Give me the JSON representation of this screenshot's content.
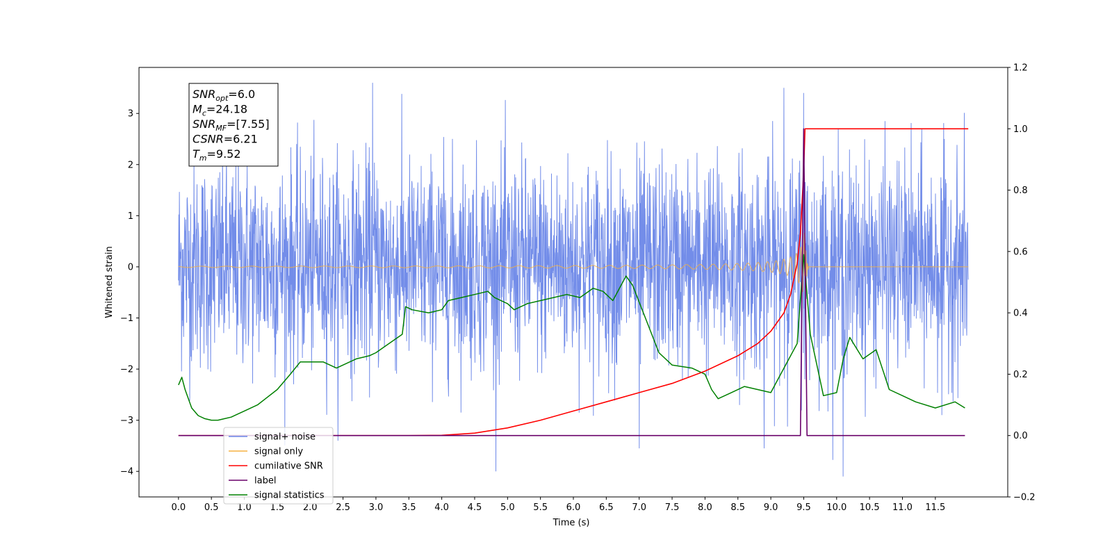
{
  "chart_data": {
    "type": "line",
    "xlabel": "Time (s)",
    "ylabel": "Whitened strain",
    "xlim": [
      -0.6,
      12.6
    ],
    "ylim": [
      -4.5,
      3.9
    ],
    "y2lim": [
      -0.2,
      1.2
    ],
    "x_ticks": [
      0.0,
      0.5,
      1.0,
      1.5,
      2.0,
      2.5,
      3.0,
      3.5,
      4.0,
      4.5,
      5.0,
      5.5,
      6.0,
      6.5,
      7.0,
      7.5,
      8.0,
      8.5,
      9.0,
      9.5,
      10.0,
      10.5,
      11.0,
      11.5
    ],
    "x_tick_labels": [
      "0.0",
      "0.5",
      "1.0",
      "1.5",
      "2.0",
      "2.5",
      "3.0",
      "3.5",
      "4.0",
      "4.5",
      "5.0",
      "5.5",
      "6.0",
      "6.5",
      "7.0",
      "7.5",
      "8.0",
      "8.5",
      "9.0",
      "9.5",
      "10.0",
      "10.5",
      "11.0",
      "11.5"
    ],
    "y_ticks": [
      3,
      2,
      1,
      0,
      -1,
      -2,
      -3,
      -4
    ],
    "y_tick_labels": [
      "3",
      "2",
      "1",
      "0",
      "−1",
      "−2",
      "−3",
      "−4"
    ],
    "y2_ticks": [
      1.2,
      1.0,
      0.8,
      0.6,
      0.4,
      0.2,
      0.0,
      -0.2
    ],
    "y2_tick_labels": [
      "1.2",
      "1.0",
      "0.8",
      "0.6",
      "0.4",
      "0.2",
      "0.0",
      "−0.2"
    ],
    "info_box": [
      {
        "sym": "SNR",
        "sub": "opt",
        "val": "=6.0"
      },
      {
        "sym": "M",
        "sub": "c",
        "val": "=24.18"
      },
      {
        "sym": "SNR",
        "sub": "MF",
        "val": "=[7.55]"
      },
      {
        "sym": "CSNR",
        "sub": "",
        "val": "=6.21"
      },
      {
        "sym": "T",
        "sub": "m",
        "val": "=9.52"
      }
    ],
    "legend": [
      {
        "label": "signal+ noise",
        "color": "#6b87e8"
      },
      {
        "label": "signal only",
        "color": "#f5b041"
      },
      {
        "label": "cumilative SNR",
        "color": "#ff0000"
      },
      {
        "label": "label",
        "color": "#6a006a"
      },
      {
        "label": "signal statistics",
        "color": "#008000"
      }
    ],
    "legend_placement": "lower-left",
    "series": [
      {
        "name": "signal+ noise",
        "axis": "left",
        "color": "#6b87e8",
        "x_range": [
          0.0,
          12.0
        ],
        "typical_band": [
          -1.8,
          1.9
        ],
        "extremes": [
          [
            2.95,
            3.6
          ],
          [
            9.2,
            3.5
          ],
          [
            9.5,
            3.4
          ],
          [
            10.1,
            -4.1
          ],
          [
            7.0,
            -3.55
          ],
          [
            8.9,
            -3.55
          ],
          [
            11.6,
            -2.9
          ]
        ]
      },
      {
        "name": "signal only",
        "axis": "left",
        "color": "#f5b041",
        "x_range": [
          0.0,
          12.0
        ],
        "merger_time": 9.52,
        "peak_amplitude": 0.95
      },
      {
        "name": "cumilative SNR",
        "axis": "right",
        "color": "#ff0000",
        "x": [
          0.0,
          3.5,
          4.0,
          4.5,
          5.0,
          5.5,
          6.0,
          6.5,
          7.0,
          7.5,
          8.0,
          8.5,
          8.8,
          9.0,
          9.2,
          9.3,
          9.4,
          9.45,
          9.5,
          9.52,
          10.0,
          11.0,
          12.0
        ],
        "y": [
          0.0,
          0.0,
          0.001,
          0.008,
          0.025,
          0.05,
          0.08,
          0.11,
          0.14,
          0.17,
          0.21,
          0.26,
          0.3,
          0.34,
          0.4,
          0.46,
          0.56,
          0.66,
          0.86,
          1.0,
          1.0,
          1.0,
          1.0
        ]
      },
      {
        "name": "label",
        "axis": "right",
        "color": "#6a006a",
        "x": [
          0.0,
          9.45,
          9.5,
          9.55,
          11.95
        ],
        "y": [
          0.0,
          0.0,
          1.0,
          0.0,
          0.0
        ]
      },
      {
        "name": "signal statistics",
        "axis": "right",
        "color": "#008000",
        "x": [
          0.0,
          0.05,
          0.1,
          0.2,
          0.3,
          0.4,
          0.5,
          0.6,
          0.7,
          0.8,
          0.9,
          1.0,
          1.2,
          1.5,
          1.7,
          1.85,
          2.0,
          2.2,
          2.4,
          2.5,
          2.7,
          2.9,
          3.0,
          3.2,
          3.4,
          3.45,
          3.55,
          3.8,
          4.0,
          4.1,
          4.3,
          4.5,
          4.7,
          4.8,
          5.0,
          5.1,
          5.3,
          5.5,
          5.7,
          5.9,
          6.1,
          6.3,
          6.45,
          6.6,
          6.8,
          6.9,
          7.1,
          7.3,
          7.5,
          7.8,
          8.0,
          8.1,
          8.2,
          8.4,
          8.6,
          8.8,
          9.0,
          9.2,
          9.4,
          9.5,
          9.6,
          9.8,
          10.0,
          10.1,
          10.2,
          10.4,
          10.6,
          10.8,
          11.0,
          11.2,
          11.5,
          11.8,
          11.95
        ],
        "y": [
          0.165,
          0.19,
          0.15,
          0.09,
          0.065,
          0.055,
          0.05,
          0.05,
          0.055,
          0.06,
          0.07,
          0.08,
          0.1,
          0.15,
          0.2,
          0.24,
          0.24,
          0.24,
          0.22,
          0.23,
          0.25,
          0.26,
          0.27,
          0.3,
          0.33,
          0.42,
          0.41,
          0.4,
          0.41,
          0.44,
          0.45,
          0.46,
          0.47,
          0.45,
          0.43,
          0.41,
          0.43,
          0.44,
          0.45,
          0.46,
          0.45,
          0.48,
          0.47,
          0.44,
          0.52,
          0.49,
          0.38,
          0.27,
          0.23,
          0.22,
          0.2,
          0.15,
          0.12,
          0.14,
          0.16,
          0.15,
          0.14,
          0.22,
          0.3,
          0.59,
          0.33,
          0.13,
          0.14,
          0.25,
          0.32,
          0.25,
          0.28,
          0.15,
          0.13,
          0.11,
          0.09,
          0.11,
          0.09
        ]
      }
    ]
  }
}
